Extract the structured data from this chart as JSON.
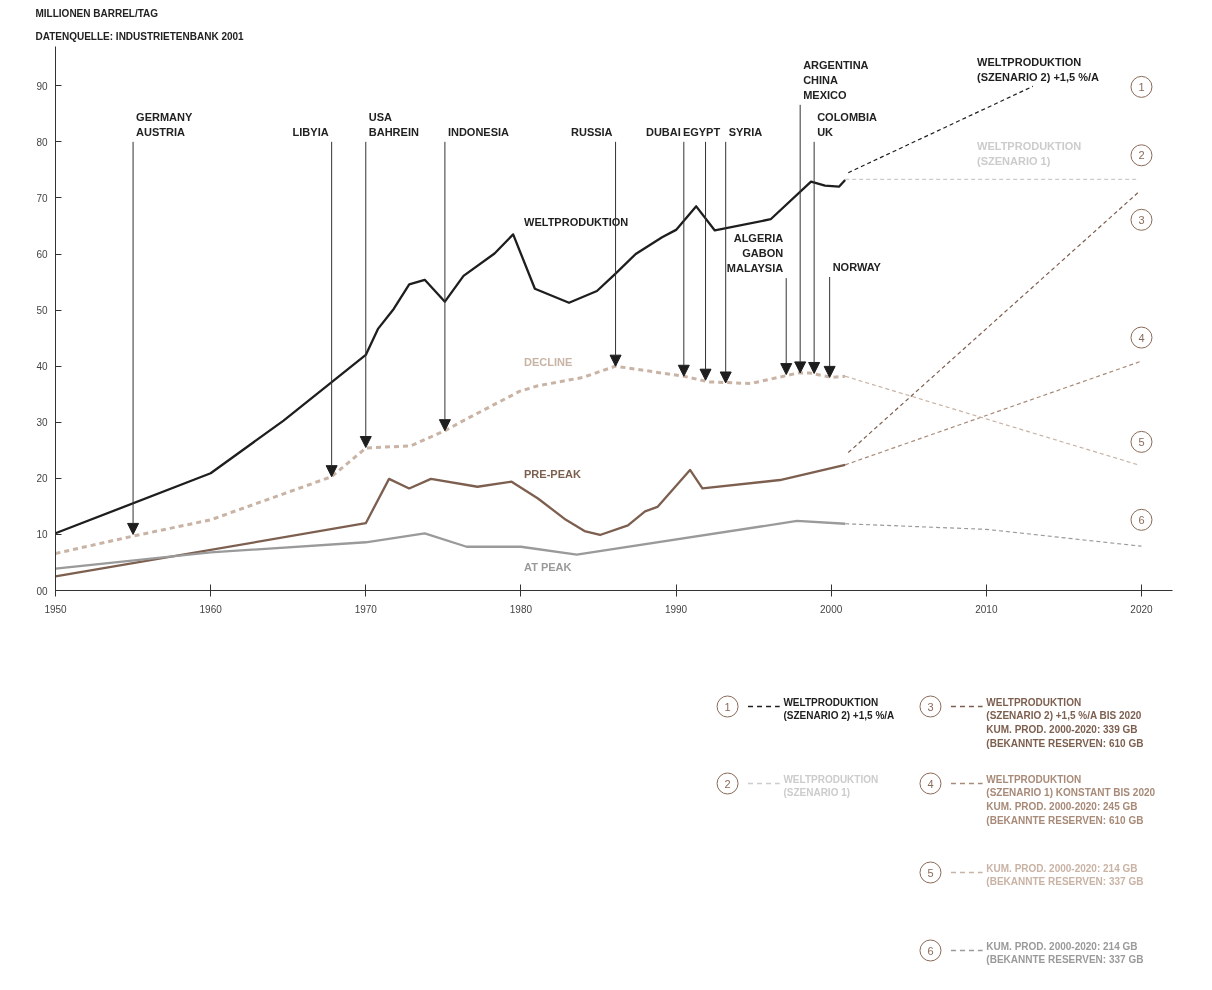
{
  "chart_data": {
    "type": "line",
    "ylabel": "MILLIONEN BARREL/TAG",
    "xlim": [
      1950,
      2022
    ],
    "ylim": [
      0,
      97
    ],
    "xticks": [
      1950,
      1960,
      1970,
      1980,
      1990,
      2000,
      2010,
      2020
    ],
    "yticks": [
      {
        "value": 0,
        "label": "00"
      },
      10,
      20,
      30,
      40,
      50,
      60,
      70,
      80,
      90
    ],
    "legend": "bottom right",
    "series": [
      {
        "name": "WELTPRODUKTION",
        "color": "#1e1e1e",
        "line_style": "solid",
        "x": [
          1950,
          1960,
          1964.7,
          1970,
          1970.8,
          1971.8,
          1972.8,
          1973.8,
          1975.1,
          1976.3,
          1978.3,
          1979.5,
          1980.9,
          1983.1,
          1984.9,
          1986.1,
          1987.4,
          1989.1,
          1990,
          1991.3,
          1992.5,
          1996.1,
          1998.7,
          1999.6,
          2000.5,
          2000.9
        ],
        "values": [
          10.2,
          20.9,
          30.3,
          42,
          46.7,
          50.2,
          54.6,
          55.4,
          51.5,
          56.1,
          60.1,
          63.5,
          53.8,
          51.3,
          53.4,
          56.5,
          60,
          63,
          64.3,
          68.5,
          64.2,
          66.2,
          72.9,
          72.2,
          72,
          73.2
        ]
      },
      {
        "name": "DECLINE",
        "color": "#c9b3a5",
        "line_style": "dotted",
        "x": [
          1950,
          1955,
          1960,
          1967.8,
          1970,
          1972.9,
          1975.1,
          1976.3,
          1979.9,
          1981.1,
          1984,
          1986.1,
          1990.5,
          1992.1,
          1994.8,
          1997.9,
          1998.6,
          2000,
          2000.9
        ],
        "values": [
          6.6,
          9.7,
          12.6,
          20.3,
          25.4,
          25.8,
          28.5,
          30.3,
          35.5,
          36.5,
          38,
          40,
          38.2,
          37.2,
          36.9,
          38.8,
          38.8,
          38,
          38.2
        ]
      },
      {
        "name": "PRE-PEAK",
        "color": "#7d5f4f",
        "line_style": "solid",
        "x": [
          1950,
          1970,
          1971.5,
          1972.8,
          1974.2,
          1977.2,
          1979.4,
          1981.1,
          1982.9,
          1984.1,
          1985.1,
          1986.9,
          1988,
          1988.8,
          1990.9,
          1991.7,
          1996.7,
          2000.9
        ],
        "values": [
          2.5,
          12,
          19.9,
          18.2,
          19.9,
          18.5,
          19.4,
          16.4,
          12.6,
          10.6,
          9.9,
          11.6,
          14.1,
          14.9,
          21.5,
          18.2,
          19.7,
          22.4
        ]
      },
      {
        "name": "AT PEAK",
        "color": "#9a9a9a",
        "line_style": "solid",
        "x": [
          1950,
          1960,
          1970,
          1973.8,
          1976.5,
          1980,
          1983.6,
          1997.8,
          2000.9
        ],
        "values": [
          3.9,
          6.8,
          8.6,
          10.2,
          7.8,
          7.8,
          6.4,
          12.4,
          11.9
        ]
      },
      {
        "name": "WELTPRODUKTION\n(SZENARIO 2) +1,5 %/A",
        "color": "#1e1e1e",
        "line_style": "dashed",
        "x": [
          2001.1,
          2013
        ],
        "values": [
          74.5,
          89.9
        ]
      },
      {
        "name": "WELTPRODUKTION\n(SZENARIO 1)",
        "color": "#cccccc",
        "line_style": "dashed",
        "x": [
          2000.9,
          2019.8
        ],
        "values": [
          73.3,
          73.3
        ]
      },
      {
        "name": "WELTPRODUKTION\n(SZENARIO 2) +1,5 %/A BIS 2020\nKUM. PROD. 2000-2020: 339 GB\n(BEKANNTE RESERVEN: 610 GB",
        "color": "#7d5f4f",
        "line_style": "dashed",
        "x": [
          2001.1,
          2019.8
        ],
        "values": [
          24.6,
          71
        ]
      },
      {
        "name": "WELTPRODUKTION\n(SZENARIO 1) KONSTANT BIS 2020\nKUM. PROD. 2000-2020: 245 GB\n(BEKANNTE RESERVEN: 610 GB",
        "color": "#a88a78",
        "line_style": "dashed",
        "x": [
          2000.9,
          2020
        ],
        "values": [
          22.4,
          40.9
        ]
      },
      {
        "name": "KUM. PROD. 2000-2020: 214 GB\n(BEKANNTE RESERVEN: 337 GB",
        "color": "#c9b3a5",
        "line_style": "dashed",
        "x": [
          2000.9,
          2019.8
        ],
        "values": [
          38.2,
          22.4
        ]
      },
      {
        "name": "KUM. PROD. 2000-2020: 214 GB\n(BEKANNTE RESERVEN: 337 GB",
        "color": "#9a9a9a",
        "line_style": "dashed",
        "x": [
          2000.9,
          2010,
          2020
        ],
        "values": [
          11.9,
          10.9,
          7.9
        ]
      }
    ],
    "annotations": [
      "DATENQUELLE: INDUSTRIETENBANK 2001",
      {
        "text": "GERMANY\nAUSTRIA",
        "x": 1955,
        "y": 10
      },
      {
        "text": "LIBYIA",
        "x": 1967.8,
        "y": 20.3
      },
      {
        "text": "USA\nBAHREIN",
        "x": 1970,
        "y": 25.5
      },
      {
        "text": "INDONESIA",
        "x": 1975.1,
        "y": 28.5
      },
      {
        "text": "RUSSIA",
        "x": 1986.1,
        "y": 40
      },
      {
        "text": "DUBAI",
        "x": 1990.5,
        "y": 38.2
      },
      {
        "text": "EGYPT",
        "x": 1991.9,
        "y": 37.5
      },
      {
        "text": "SYRIA",
        "x": 1993.2,
        "y": 37
      },
      {
        "text": "ALGERIA\nGABON\nMALAYSIA",
        "x": 1997.1,
        "y": 38.5
      },
      {
        "text": "ARGENTINA\nCHINA\nMEXICO",
        "x": 1998,
        "y": 38.8
      },
      {
        "text": "COLOMBIA\nUK",
        "x": 1998.9,
        "y": 38.7
      },
      {
        "text": "NORWAY",
        "x": 1999.9,
        "y": 38
      },
      {
        "text": "WELTPRODUKTION\n(SZENARIO 2) +1,5 %/A",
        "x": 2009.4,
        "y": 85.2
      },
      {
        "text": "WELTPRODUKTION\n(SZENARIO 1)",
        "x": 2009.4,
        "y": 73.3
      },
      {
        "text": "1",
        "x": 2020,
        "y": 89.8
      },
      {
        "text": "2",
        "x": 2020,
        "y": 77.6
      },
      {
        "text": "3",
        "x": 2020,
        "y": 66.1
      },
      {
        "text": "4",
        "x": 2020,
        "y": 45.1
      },
      {
        "text": "5",
        "x": 2020,
        "y": 26.5
      },
      {
        "text": "6",
        "x": 2020,
        "y": 12.6
      }
    ]
  }
}
